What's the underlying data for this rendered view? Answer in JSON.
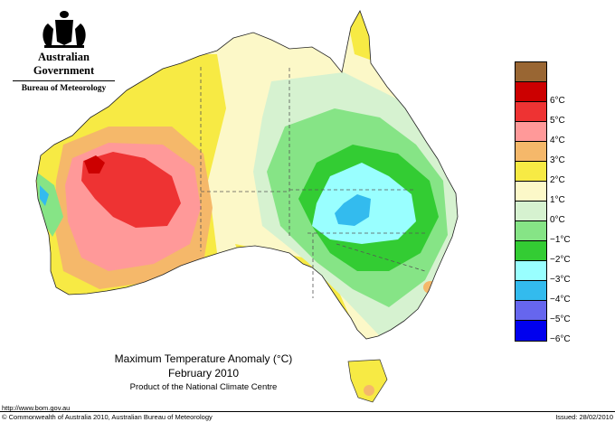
{
  "header": {
    "crest_icon": "commonwealth-coat-of-arms-icon",
    "government": "Australian Government",
    "bureau": "Bureau of Meteorology"
  },
  "map": {
    "title": "Maximum Temperature Anomaly (°C)",
    "period": "February 2010",
    "product": "Product of the National Climate Centre"
  },
  "legend": [
    {
      "label": "",
      "color": "#996633"
    },
    {
      "label": "6°C",
      "color": "#cc0000"
    },
    {
      "label": "5°C",
      "color": "#ee3333"
    },
    {
      "label": "4°C",
      "color": "#ff9999"
    },
    {
      "label": "3°C",
      "color": "#f5b86a"
    },
    {
      "label": "2°C",
      "color": "#f7ea44"
    },
    {
      "label": "1°C",
      "color": "#fcf8c8"
    },
    {
      "label": "0°C",
      "color": "#d6f2d0"
    },
    {
      "label": "−1°C",
      "color": "#86e486"
    },
    {
      "label": "−2°C",
      "color": "#33cc33"
    },
    {
      "label": "−3°C",
      "color": "#99ffff"
    },
    {
      "label": "−4°C",
      "color": "#33bbee"
    },
    {
      "label": "−5°C",
      "color": "#6666ee"
    },
    {
      "label": "−6°C",
      "color": "#0000ee"
    }
  ],
  "footer": {
    "url": "http://www.bom.gov.au",
    "copyright": "© Commonwealth of Australia 2010, Australian Bureau of Meteorology",
    "issued": "Issued: 28/02/2010"
  }
}
